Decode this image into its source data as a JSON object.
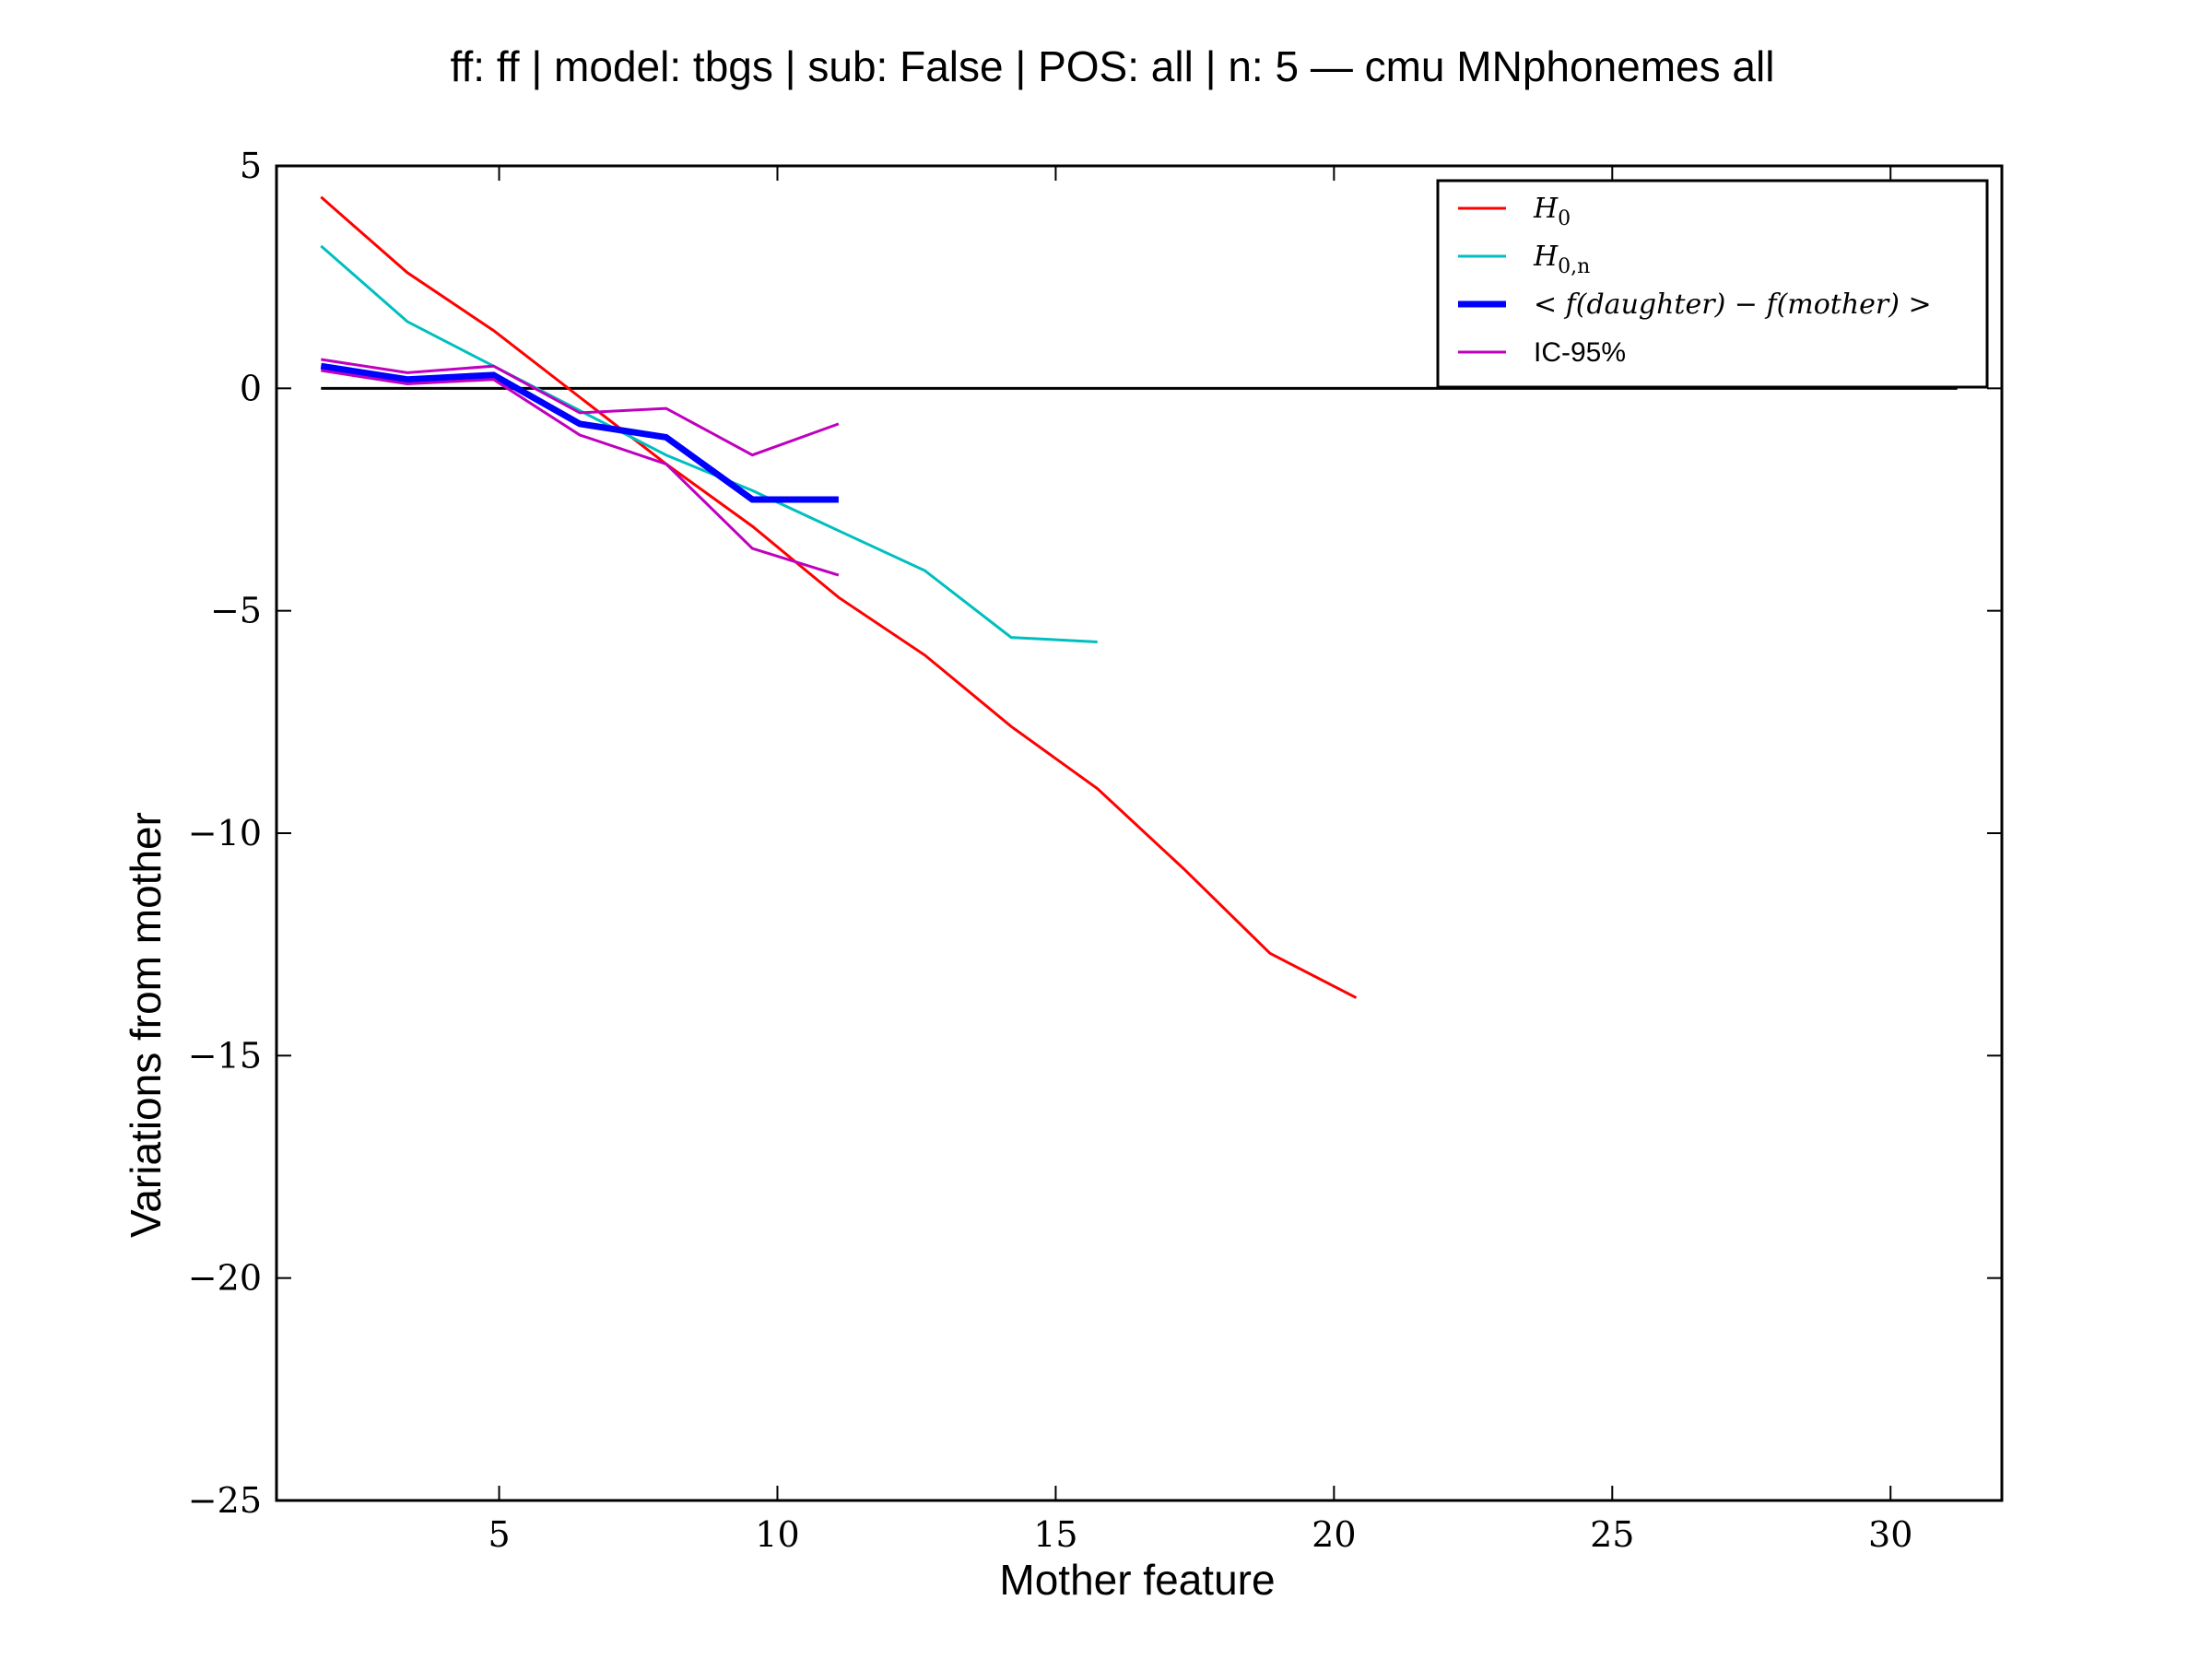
{
  "chart_data": {
    "type": "line",
    "title": "ff: ff | model: tbgs | sub: False | POS: all | n: 5 — cmu MNphonemes all",
    "xlabel": "Mother feature",
    "ylabel": "Variations from mother",
    "xlim": [
      1,
      32
    ],
    "ylim": [
      -25,
      5
    ],
    "xticks": [
      5,
      10,
      15,
      20,
      25,
      30
    ],
    "xtick_labels": [
      "5",
      "10",
      "15",
      "20",
      "25",
      "30"
    ],
    "yticks": [
      5,
      0,
      -5,
      -10,
      -15,
      -20,
      -25
    ],
    "ytick_labels": [
      "5",
      "0",
      "−5",
      "−10",
      "−15",
      "−20",
      "−25"
    ],
    "grid": false,
    "legend_position": "top-right",
    "reference_line": {
      "y": 0,
      "x": [
        1.8,
        31.2
      ],
      "color": "#000000"
    },
    "series": [
      {
        "name": "H_0",
        "legend_main": "H",
        "legend_sub": "0",
        "color": "#ff0000",
        "style": "thin",
        "x": [
          1.8,
          3.35,
          4.9,
          6.45,
          8.0,
          9.55,
          11.1,
          12.65,
          14.2,
          15.75,
          17.3,
          18.85,
          20.4
        ],
        "y": [
          4.3,
          2.6,
          1.3,
          -0.2,
          -1.7,
          -3.1,
          -4.7,
          -6.0,
          -7.6,
          -9.0,
          -10.8,
          -12.7,
          -13.7
        ]
      },
      {
        "name": "H_0,n",
        "legend_main": "H",
        "legend_sub": "0,n",
        "color": "#00bfbf",
        "style": "thin",
        "x": [
          1.8,
          3.35,
          4.9,
          6.45,
          8.0,
          9.55,
          11.1,
          12.65,
          14.2,
          15.75
        ],
        "y": [
          3.2,
          1.5,
          0.5,
          -0.5,
          -1.5,
          -2.3,
          -3.2,
          -4.1,
          -5.6,
          -5.7
        ]
      },
      {
        "name": "< f(daughter) − f(mother) >",
        "legend_main": "< f(daughter) − f(mother) >",
        "color": "#0000ff",
        "style": "thick",
        "x": [
          1.8,
          3.35,
          4.9,
          6.45,
          8.0,
          9.55,
          11.1
        ],
        "y": [
          0.5,
          0.2,
          0.3,
          -0.8,
          -1.1,
          -2.5,
          -2.5
        ]
      },
      {
        "name": "IC-95%",
        "legend_main": "IC-95%",
        "color": "#bf00bf",
        "style": "thin",
        "x": [
          1.8,
          3.35,
          4.9,
          6.45,
          8.0,
          9.55,
          11.1
        ],
        "y": [
          0.65,
          0.35,
          0.5,
          -0.55,
          -0.45,
          -1.5,
          -0.8
        ]
      },
      {
        "name": "IC-95% lower",
        "color": "#bf00bf",
        "style": "thin",
        "legend": false,
        "x": [
          1.8,
          3.35,
          4.9,
          6.45,
          8.0,
          9.55,
          11.1
        ],
        "y": [
          0.4,
          0.1,
          0.2,
          -1.05,
          -1.7,
          -3.6,
          -4.2
        ]
      }
    ]
  }
}
